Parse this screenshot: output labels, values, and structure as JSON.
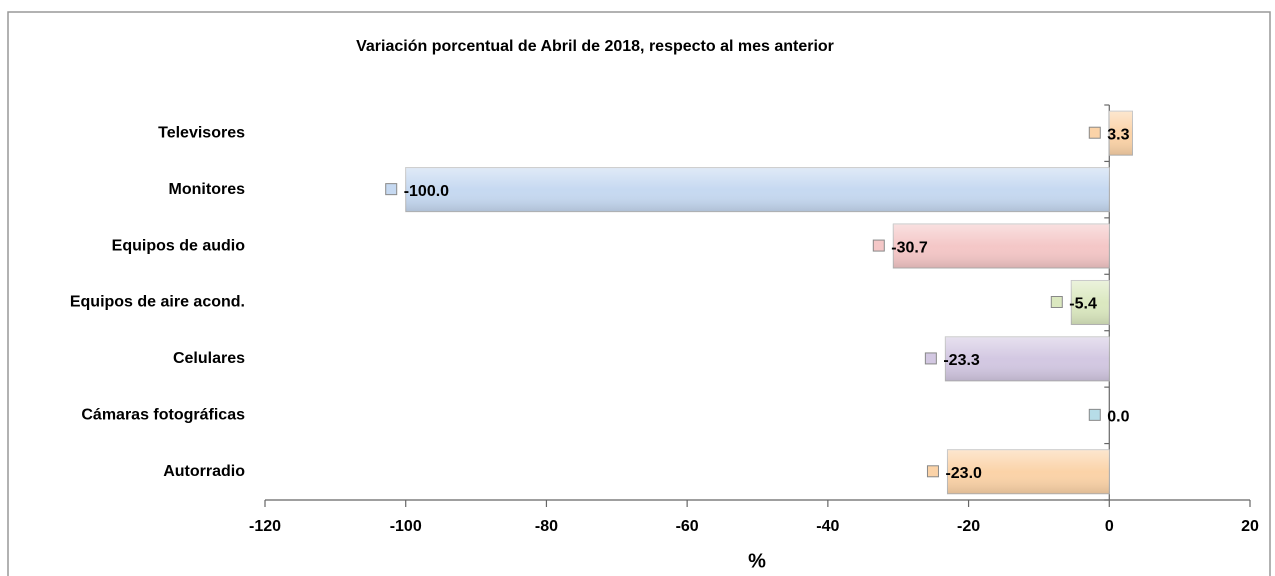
{
  "chart_data": {
    "type": "bar",
    "orientation": "horizontal",
    "title": "Variación porcentual de Abril de 2018, respecto al mes anterior",
    "x_label": "%",
    "categories": [
      "Televisores",
      "Monitores",
      "Equipos de audio",
      "Equipos de aire acond.",
      "Celulares",
      "Cámaras fotográficas",
      "Autorradio"
    ],
    "values": [
      3.3,
      -100.0,
      -30.7,
      -5.4,
      -23.3,
      0.0,
      -23.0
    ],
    "value_labels": [
      "3.3",
      "-100.0",
      "-30.7",
      "-5.4",
      "-23.3",
      "0.0",
      "-23.0"
    ],
    "colors": [
      "#fbd3a8",
      "#c6d9f1",
      "#f4c7c7",
      "#dbe8c0",
      "#d3c8e2",
      "#b7dde8",
      "#fbd3a8"
    ],
    "xlim": [
      -120,
      20
    ],
    "xticks": [
      -120,
      -100,
      -80,
      -60,
      -40,
      -20,
      0,
      20
    ]
  }
}
